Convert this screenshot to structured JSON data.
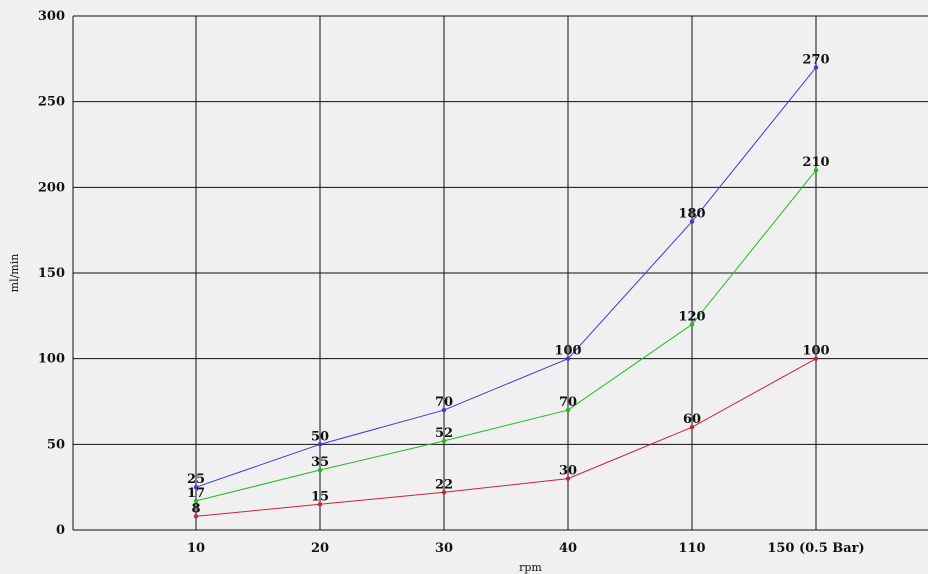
{
  "chart_data": {
    "type": "line",
    "title": "",
    "xlabel": "rpm",
    "ylabel": "ml/min",
    "categories": [
      "10",
      "20",
      "30",
      "40",
      "110",
      "150 (0.5 Bar)"
    ],
    "ylim": [
      0,
      300
    ],
    "yticks": [
      0,
      50,
      100,
      150,
      200,
      250,
      300
    ],
    "grid": true,
    "legend": "none",
    "background_color": "#f0f0f0",
    "grid_color": "#111111",
    "series": [
      {
        "values": [
          25,
          50,
          70,
          100,
          180,
          270
        ],
        "color": "#3b3bd6"
      },
      {
        "values": [
          17,
          35,
          52,
          70,
          120,
          210
        ],
        "color": "#22bb22"
      },
      {
        "values": [
          8,
          15,
          22,
          30,
          60,
          100
        ],
        "color": "#cc2233"
      }
    ]
  }
}
